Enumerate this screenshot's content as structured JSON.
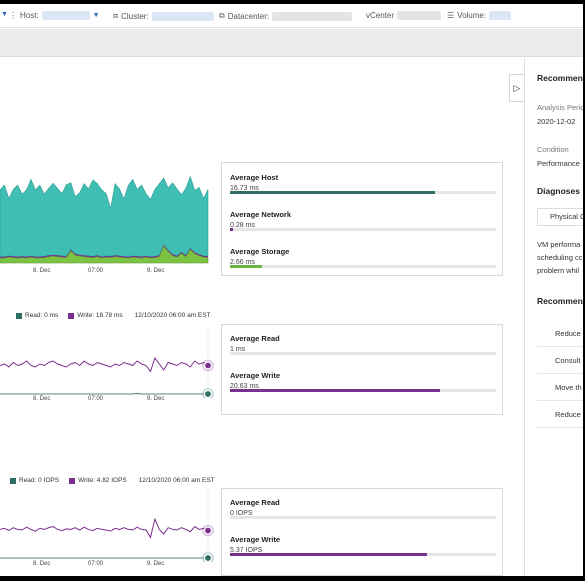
{
  "filters": [
    {
      "label": "Host:",
      "icon": "host-icon"
    },
    {
      "label": "Cluster:",
      "icon": "cluster-icon"
    },
    {
      "label": "Datacenter:",
      "icon": "datacenter-icon"
    },
    {
      "label": "vCenter",
      "icon": ""
    },
    {
      "label": "Volume:",
      "icon": "volume-icon"
    }
  ],
  "latency_metrics": [
    {
      "title": "Average Host",
      "value": "16.73 ms",
      "pct": 0.77,
      "color": "#2e6e64"
    },
    {
      "title": "Average Network",
      "value": "0.28 ms",
      "pct": 0.01,
      "color": "#7b2f8e"
    },
    {
      "title": "Average Storage",
      "value": "2.66 ms",
      "pct": 0.12,
      "color": "#6cb33f"
    }
  ],
  "rw_latency_legend": {
    "read": "Read: 0 ms",
    "write": "Write: 18.78 ms",
    "timestamp": "12/10/2020 06:00 am EST"
  },
  "rw_latency_metrics": [
    {
      "title": "Average Read",
      "value": "1 ms",
      "pct": 0.0,
      "color": "#2e6e64"
    },
    {
      "title": "Average Write",
      "value": "20.63 ms",
      "pct": 0.79,
      "color": "#7b2f8e"
    }
  ],
  "iops_legend": {
    "read": "Read: 0 IOPS",
    "write": "Write: 4.82 IOPS",
    "timestamp": "12/10/2020 06:00 am EST"
  },
  "iops_metrics": [
    {
      "title": "Average Read",
      "value": "0 IOPS",
      "pct": 0.0,
      "color": "#2e6e64"
    },
    {
      "title": "Average Write",
      "value": "5.37 IOPS",
      "pct": 0.74,
      "color": "#7b2f8e"
    }
  ],
  "x_ticks": [
    "8. Dec",
    "07:00",
    "9. Dec"
  ],
  "chart_data": [
    {
      "type": "area",
      "title": "",
      "series": [
        {
          "name": "Host",
          "color": "#3fbfb3",
          "values": [
            14,
            15,
            12,
            14,
            15,
            13,
            14,
            16,
            14,
            15,
            13,
            14,
            15,
            14,
            13,
            15,
            14,
            12,
            13,
            15,
            14,
            16,
            15,
            14,
            13,
            10,
            15,
            14,
            12,
            15,
            16,
            14,
            15,
            13,
            12,
            14,
            15,
            14,
            13,
            15,
            14,
            12,
            14,
            15,
            13,
            14,
            12,
            14
          ]
        },
        {
          "name": "Network",
          "color": "#7b2f8e",
          "values": [
            0.3,
            0.3,
            0.3,
            0.3,
            0.3,
            0.3,
            0.3,
            0.3,
            0.3,
            0.3,
            0.3,
            0.3,
            0.3,
            0.3,
            0.3,
            0.3,
            0.3,
            0.3,
            0.3,
            0.3,
            0.3,
            0.3,
            0.3,
            0.3,
            0.3,
            0.3,
            0.3,
            0.3,
            0.3,
            0.3,
            0.3,
            0.3,
            0.3,
            0.3,
            0.3,
            0.3,
            0.3,
            0.3,
            0.3,
            0.3,
            0.3,
            0.3,
            0.3,
            0.3,
            0.3,
            0.3,
            0.3,
            0.3
          ]
        },
        {
          "name": "Storage",
          "color": "#7cc243",
          "values": [
            1,
            1,
            1.2,
            1.1,
            1,
            1.1,
            1,
            1.2,
            1,
            1,
            1.1,
            1.3,
            1.4,
            1.3,
            1.2,
            1.1,
            2.5,
            1.6,
            1.4,
            1.3,
            1.2,
            1.1,
            1.3,
            1,
            1.2,
            1.1,
            1.3,
            1.2,
            1.1,
            1,
            1.2,
            1.1,
            1,
            1.2,
            1,
            1.1,
            1.3,
            3.5,
            2.4,
            1.5,
            1.2,
            2,
            1.3,
            2.8,
            1.9,
            1.5,
            1.2,
            1.1
          ]
        }
      ]
    },
    {
      "type": "line",
      "series": [
        {
          "name": "Read",
          "color": "#2e6e64",
          "values": [
            0,
            0,
            0,
            0,
            0,
            0,
            0,
            0,
            0,
            0,
            0,
            0,
            0,
            0,
            0,
            0,
            0,
            0,
            0,
            0,
            0,
            0,
            0,
            0,
            0,
            0,
            0,
            0,
            0,
            0,
            0,
            0.5,
            0,
            0,
            0,
            0,
            0,
            0,
            0,
            0,
            0,
            0,
            0,
            0,
            0,
            0,
            0,
            0
          ]
        },
        {
          "name": "Write",
          "color": "#7b2f8e",
          "values": [
            19,
            20,
            18,
            21,
            19,
            20,
            22,
            19,
            18,
            20,
            19,
            21,
            22,
            20,
            19,
            18,
            20,
            21,
            19,
            22,
            20,
            19,
            21,
            20,
            19,
            18,
            20,
            19,
            21,
            20,
            19,
            22,
            20,
            19,
            15,
            24,
            20,
            16,
            21,
            20,
            19,
            21,
            20,
            18,
            22,
            20,
            21,
            19
          ]
        }
      ]
    },
    {
      "type": "line",
      "series": [
        {
          "name": "Read",
          "color": "#2e6e64",
          "values": [
            0,
            0,
            0,
            0,
            0,
            0,
            0,
            0,
            0,
            0,
            0,
            0,
            0,
            0,
            0,
            0,
            0,
            0,
            0,
            0,
            0,
            0,
            0,
            0,
            0,
            0,
            0,
            0,
            0,
            0,
            0,
            0,
            0,
            0,
            0,
            0,
            0,
            0,
            0,
            0,
            0,
            0,
            0,
            0,
            0,
            0,
            0,
            0
          ]
        },
        {
          "name": "Write",
          "color": "#7b2f8e",
          "values": [
            5,
            5.2,
            4.8,
            5.3,
            5,
            4.9,
            5.4,
            5,
            4.7,
            5.2,
            5,
            5.3,
            5.5,
            5,
            4.8,
            5.1,
            5,
            5.3,
            4.9,
            5.4,
            5,
            4.8,
            5.2,
            5,
            4.9,
            4.7,
            5.2,
            5,
            5.3,
            5,
            4.9,
            5.4,
            5,
            4.9,
            3.6,
            6.8,
            5,
            4.2,
            5.3,
            5,
            4.9,
            5.3,
            5,
            4.6,
            5.5,
            5,
            5.2,
            4.8
          ]
        }
      ]
    }
  ],
  "right_panel": {
    "title": "Recommenc",
    "analysis_label": "Analysis Peric",
    "analysis_value": "2020-12-02",
    "condition_label": "Condition",
    "condition_value": "Performance",
    "diagnoses_title": "Diagnoses",
    "diagnoses_tab": "Physical C",
    "description": [
      "VM performa",
      "scheduling cc",
      "problem whil"
    ],
    "recommendations_title": "Recommenc",
    "recommendations": [
      "Reduce",
      "Consult",
      "Move th",
      "Reduce"
    ]
  }
}
